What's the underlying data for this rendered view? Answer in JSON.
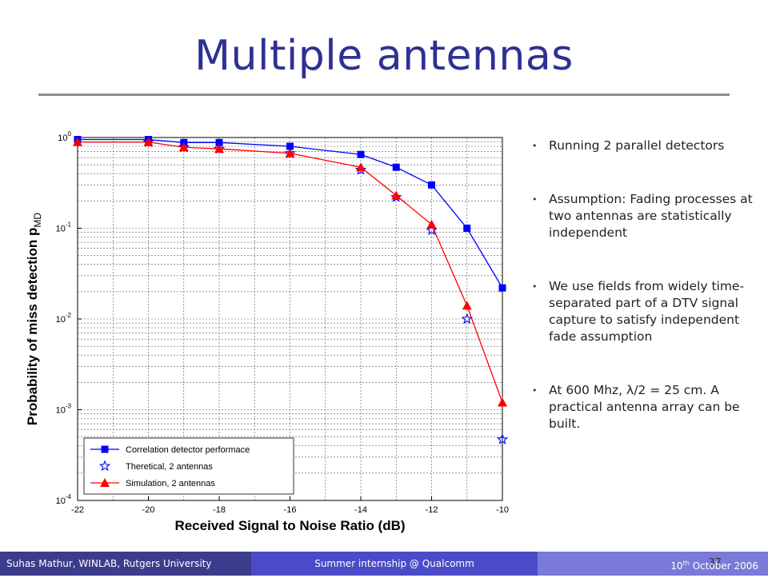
{
  "slide": {
    "title": "Multiple antennas"
  },
  "bullets": [
    "Running 2 parallel detectors",
    "Assumption: Fading processes at two antennas are statistically independent",
    "We use fields from widely time-separated part of a DTV signal capture to satisfy independent fade assumption",
    "At 600 Mhz, λ/2 = 25 cm. A practical antenna array can be built."
  ],
  "footer": {
    "left": "Suhas Mathur, WINLAB, Rutgers University",
    "middle": "Summer internship @ Qualcomm",
    "page": "37",
    "date_prefix": "10",
    "date_sup": "th",
    "date_suffix": " October 2006"
  },
  "chart_data": {
    "type": "line",
    "xlabel": "Received Signal to Noise Ratio (dB)",
    "ylabel": "Probability of miss detection p",
    "ylabel_subscript": "MD",
    "xlim": [
      -22,
      -10
    ],
    "ylim": [
      0.0001,
      1
    ],
    "yscale": "log",
    "x_ticks": [
      -22,
      -20,
      -18,
      -16,
      -14,
      -12,
      -10
    ],
    "y_ticks": [
      {
        "value": 1,
        "base": "10",
        "exp": "0"
      },
      {
        "value": 0.1,
        "base": "10",
        "exp": "-1"
      },
      {
        "value": 0.01,
        "base": "10",
        "exp": "-2"
      },
      {
        "value": 0.001,
        "base": "10",
        "exp": "-3"
      },
      {
        "value": 0.0001,
        "base": "10",
        "exp": "-4"
      }
    ],
    "grid": true,
    "legend_position": "bottom-left",
    "series": [
      {
        "name": "Correlation detector performace",
        "color": "#0000ff",
        "marker": "square",
        "line": true,
        "x": [
          -22,
          -20,
          -19,
          -18,
          -16,
          -14,
          -13,
          -12,
          -11,
          -10
        ],
        "y": [
          0.95,
          0.95,
          0.88,
          0.88,
          0.8,
          0.65,
          0.47,
          0.3,
          0.1,
          0.022
        ]
      },
      {
        "name": "Theretical, 2 antennas",
        "color": "#0000ff",
        "marker": "star",
        "line": false,
        "x": [
          -20,
          -19,
          -18,
          -16,
          -14,
          -13,
          -12,
          -11,
          -10
        ],
        "y": [
          0.89,
          0.78,
          0.75,
          0.67,
          0.44,
          0.22,
          0.095,
          0.01,
          0.00047
        ]
      },
      {
        "name": "Simulation, 2 antennas",
        "color": "#ff0000",
        "marker": "triangle",
        "line": true,
        "x": [
          -22,
          -20,
          -19,
          -18,
          -16,
          -14,
          -13,
          -12,
          -11,
          -10
        ],
        "y": [
          0.89,
          0.89,
          0.78,
          0.75,
          0.67,
          0.47,
          0.23,
          0.11,
          0.014,
          0.0012
        ]
      }
    ]
  }
}
